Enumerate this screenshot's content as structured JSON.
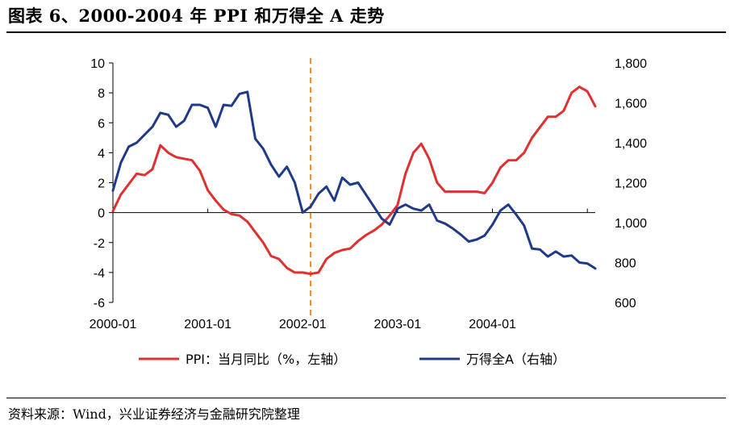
{
  "title": "图表 6、2000-2004 年 PPI 和万得全 A 走势",
  "source": "资料来源：Wind，兴业证券经济与金融研究院整理",
  "colors": {
    "ppi": "#e03030",
    "wind": "#1f3a8a",
    "divider": "#f08a30",
    "axis": "#000000"
  },
  "chart_data": {
    "type": "line",
    "x_tick_labels": [
      "2000-01",
      "2001-01",
      "2002-01",
      "2003-01",
      "2004-01"
    ],
    "y_left": {
      "lim": [
        -6,
        10
      ],
      "ticks": [
        "10",
        "8",
        "6",
        "4",
        "2",
        "0",
        "-2",
        "-4",
        "-6"
      ]
    },
    "y_right": {
      "lim": [
        600,
        1800
      ],
      "ticks": [
        "1,800",
        "1,600",
        "1,400",
        "1,200",
        "1,000",
        "800",
        "600"
      ]
    },
    "vline_month_index": 25,
    "series": [
      {
        "name": "PPI：当月同比（%，左轴）",
        "axis": "left",
        "values": [
          0.1,
          1.2,
          1.9,
          2.6,
          2.5,
          2.9,
          4.5,
          4.0,
          3.7,
          3.6,
          3.5,
          2.8,
          1.5,
          0.8,
          0.2,
          -0.1,
          -0.2,
          -0.6,
          -1.3,
          -2.0,
          -2.9,
          -3.1,
          -3.7,
          -4.0,
          -4.0,
          -4.1,
          -4.0,
          -3.1,
          -2.7,
          -2.5,
          -2.4,
          -1.9,
          -1.5,
          -1.2,
          -0.8,
          -0.2,
          0.5,
          2.6,
          4.0,
          4.6,
          3.6,
          2.0,
          1.4,
          1.4,
          1.4,
          1.4,
          1.4,
          1.3,
          2.0,
          3.0,
          3.5,
          3.5,
          4.0,
          5.0,
          5.7,
          6.4,
          6.4,
          6.8,
          8.0,
          8.4,
          8.1,
          7.1
        ],
        "unit": "%"
      },
      {
        "name": "万得全A（右轴）",
        "axis": "right",
        "values": [
          1160,
          1300,
          1380,
          1400,
          1440,
          1480,
          1550,
          1540,
          1480,
          1510,
          1590,
          1590,
          1575,
          1480,
          1590,
          1585,
          1645,
          1655,
          1420,
          1370,
          1290,
          1230,
          1280,
          1200,
          1050,
          1080,
          1145,
          1180,
          1110,
          1225,
          1190,
          1200,
          1140,
          1080,
          1020,
          990,
          1070,
          1090,
          1070,
          1060,
          1090,
          1010,
          995,
          970,
          940,
          905,
          915,
          935,
          990,
          1060,
          1090,
          1040,
          985,
          870,
          865,
          830,
          855,
          830,
          835,
          800,
          795,
          770
        ]
      }
    ]
  }
}
